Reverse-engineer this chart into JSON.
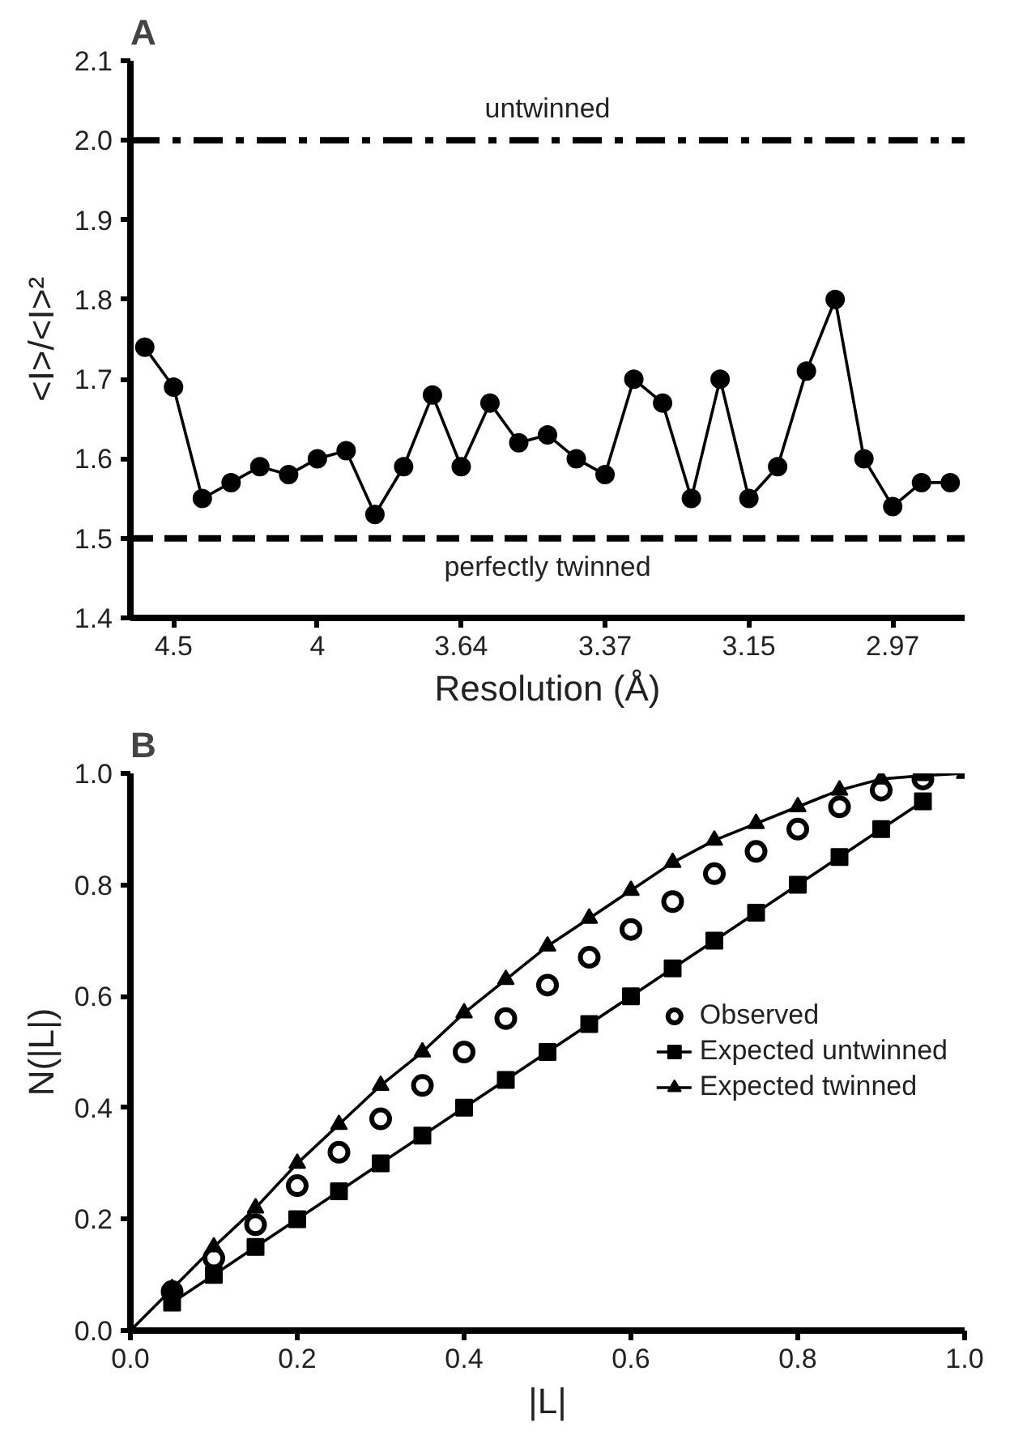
{
  "chart_data": [
    {
      "type": "line",
      "title": "A",
      "xlabel": "Resolution (Å)",
      "ylabel": "<I>/<I>²",
      "categories": [
        null,
        "4.5",
        null,
        null,
        null,
        null,
        "4",
        null,
        null,
        null,
        null,
        "3.64",
        null,
        null,
        null,
        null,
        "3.37",
        null,
        null,
        null,
        null,
        "3.15",
        null,
        null,
        null,
        null,
        "2.97",
        null,
        null
      ],
      "series": [
        {
          "color": "#000000",
          "marker": "circle",
          "values": [
            1.74,
            1.69,
            1.55,
            1.57,
            1.59,
            1.58,
            1.6,
            1.61,
            1.53,
            1.59,
            1.68,
            1.59,
            1.67,
            1.62,
            1.63,
            1.6,
            1.58,
            1.7,
            1.67,
            1.55,
            1.7,
            1.55,
            1.59,
            1.71,
            1.8,
            1.6,
            1.54,
            1.57,
            1.57
          ]
        }
      ],
      "ylim": [
        1.4,
        2.1
      ],
      "yticks": [
        1.4,
        1.5,
        1.6,
        1.7,
        1.8,
        1.9,
        {
          "value": 2.0,
          "label": "2.0"
        },
        2.1
      ],
      "ref_lines": [
        {
          "axis": "y",
          "value": 2.0,
          "label": "untwinned",
          "line_style": "dashdot",
          "color": "#000000"
        },
        {
          "axis": "y",
          "value": 1.5,
          "label": "perfectly twinned",
          "line_style": "dashed",
          "color": "#000000"
        }
      ],
      "grid": false,
      "legend": false
    },
    {
      "type": "line",
      "title": "B",
      "xlabel": "|L|",
      "ylabel": "N(|L|)",
      "x": [
        0,
        0.05,
        0.1,
        0.15,
        0.2,
        0.25,
        0.3,
        0.35,
        0.4,
        0.45,
        0.5,
        0.55,
        0.6,
        0.65,
        0.7,
        0.75,
        0.8,
        0.85,
        0.9,
        0.95,
        1.0
      ],
      "series": [
        {
          "name": "Observed",
          "type": "scatter",
          "marker": "circle",
          "color": "#000000",
          "values": [
            null,
            0.07,
            0.13,
            0.19,
            0.26,
            0.32,
            0.38,
            0.44,
            0.5,
            0.56,
            0.62,
            0.67,
            0.72,
            0.77,
            0.82,
            0.86,
            0.9,
            0.94,
            0.97,
            0.99,
            null
          ]
        },
        {
          "name": "Expected untwinned",
          "type": "line",
          "marker": "square",
          "color": "#000000",
          "values": [
            null,
            0.05,
            0.1,
            0.15,
            0.2,
            0.25,
            0.3,
            0.35,
            0.4,
            0.45,
            0.5,
            0.55,
            0.6,
            0.65,
            0.7,
            0.75,
            0.8,
            0.85,
            0.9,
            0.95,
            null
          ]
        },
        {
          "name": "Expected twinned",
          "type": "line",
          "marker": "triangle",
          "color": "#000000",
          "values": [
            0,
            0.075,
            0.15,
            0.22,
            0.3,
            0.37,
            0.44,
            0.5,
            0.57,
            0.63,
            0.69,
            0.74,
            0.79,
            0.84,
            0.88,
            0.91,
            0.94,
            0.97,
            0.99,
            0.996,
            1.0
          ]
        }
      ],
      "xlim": [
        0,
        1.0
      ],
      "xticks": [
        {
          "value": 0,
          "label": "0.0"
        },
        0.2,
        0.4,
        0.6,
        0.8,
        {
          "value": 1.0,
          "label": "1.0"
        }
      ],
      "ylim": [
        0,
        1.0
      ],
      "yticks": [
        {
          "value": 0,
          "label": "0.0"
        },
        0.2,
        0.4,
        0.6,
        0.8,
        {
          "value": 1.0,
          "label": "1.0"
        }
      ],
      "grid": false,
      "legend": "right"
    }
  ]
}
